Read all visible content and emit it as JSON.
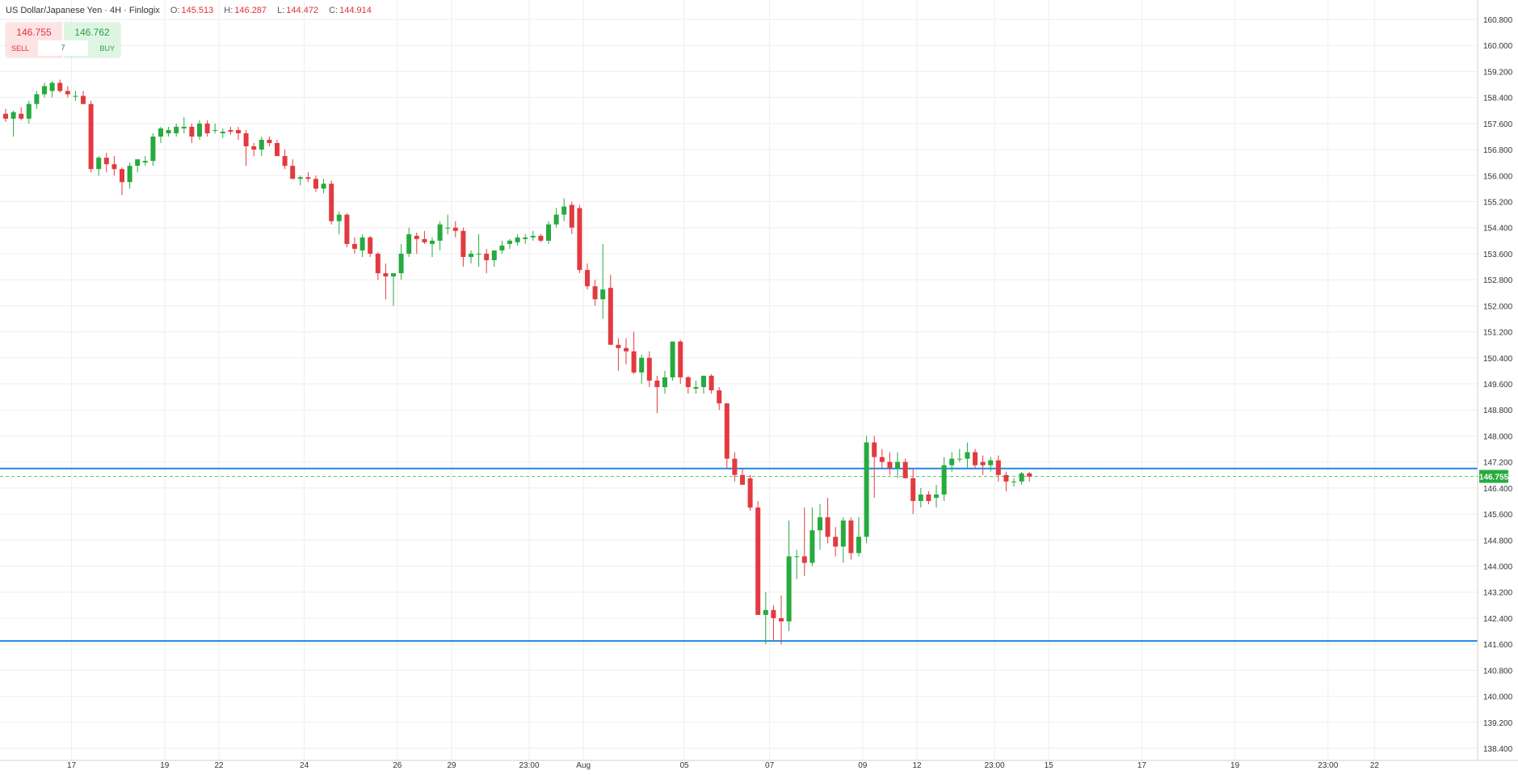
{
  "header": {
    "symbol": "US Dollar/Japanese Yen · 4H · Finlogix",
    "open_label": "O:",
    "open": "145.513",
    "high_label": "H:",
    "high": "146.287",
    "low_label": "L:",
    "low": "144.472",
    "close_label": "C:",
    "close": "144.914"
  },
  "trade": {
    "sell_price": "146.755",
    "buy_price": "146.762",
    "sell_label": "SELL",
    "buy_label": "BUY",
    "quantity": "7"
  },
  "colors": {
    "up": "#26ab3e",
    "down": "#e23a40",
    "level_line": "#1e88e5",
    "grid": "#eeeeee",
    "price_badge": "#26ab3e"
  },
  "chart_data": {
    "type": "candlestick",
    "ylim": [
      138.4,
      160.8
    ],
    "y_ticks": [
      "138.400",
      "139.200",
      "140.000",
      "140.800",
      "141.600",
      "142.400",
      "143.200",
      "144.000",
      "144.800",
      "145.600",
      "146.400",
      "147.200",
      "148.000",
      "148.800",
      "149.600",
      "150.400",
      "151.200",
      "152.000",
      "152.800",
      "153.600",
      "154.400",
      "155.200",
      "156.000",
      "156.800",
      "157.600",
      "158.400",
      "159.200",
      "160.000",
      "160.800"
    ],
    "x_tick_labels": [
      {
        "label": "17",
        "index": 8.5
      },
      {
        "label": "19",
        "index": 20.5
      },
      {
        "label": "22",
        "index": 27.5
      },
      {
        "label": "24",
        "index": 38.5
      },
      {
        "label": "26",
        "index": 50.5
      },
      {
        "label": "29",
        "index": 57.5
      },
      {
        "label": "23:00",
        "index": 67.5
      },
      {
        "label": "Aug",
        "index": 74.5
      },
      {
        "label": "05",
        "index": 87.5
      },
      {
        "label": "07",
        "index": 98.5
      },
      {
        "label": "09",
        "index": 110.5
      },
      {
        "label": "12",
        "index": 117.5
      },
      {
        "label": "23:00",
        "index": 127.5
      },
      {
        "label": "15",
        "index": 134.5
      },
      {
        "label": "17",
        "index": 146.5
      },
      {
        "label": "19",
        "index": 158.5
      },
      {
        "label": "23:00",
        "index": 170.5
      },
      {
        "label": "22",
        "index": 176.5
      }
    ],
    "candles": [
      [
        157.9,
        158.05,
        157.65,
        157.75
      ],
      [
        157.75,
        158.0,
        157.2,
        157.95
      ],
      [
        157.9,
        158.1,
        157.7,
        157.75
      ],
      [
        157.75,
        158.3,
        157.6,
        158.2
      ],
      [
        158.2,
        158.6,
        158.05,
        158.5
      ],
      [
        158.5,
        158.85,
        158.4,
        158.75
      ],
      [
        158.6,
        158.9,
        158.4,
        158.85
      ],
      [
        158.85,
        158.95,
        158.55,
        158.6
      ],
      [
        158.6,
        158.75,
        158.4,
        158.5
      ],
      [
        158.45,
        158.6,
        158.3,
        158.45
      ],
      [
        158.45,
        158.6,
        158.2,
        158.2
      ],
      [
        158.2,
        158.3,
        156.1,
        156.2
      ],
      [
        156.2,
        156.6,
        156.0,
        156.55
      ],
      [
        156.55,
        156.7,
        156.1,
        156.35
      ],
      [
        156.35,
        156.6,
        156.0,
        156.2
      ],
      [
        156.2,
        156.25,
        155.4,
        155.8
      ],
      [
        155.8,
        156.4,
        155.6,
        156.3
      ],
      [
        156.3,
        156.5,
        156.1,
        156.5
      ],
      [
        156.4,
        156.6,
        156.3,
        156.45
      ],
      [
        156.45,
        157.3,
        156.3,
        157.2
      ],
      [
        157.2,
        157.5,
        157.0,
        157.45
      ],
      [
        157.3,
        157.5,
        157.2,
        157.4
      ],
      [
        157.3,
        157.6,
        157.2,
        157.5
      ],
      [
        157.45,
        157.8,
        157.3,
        157.5
      ],
      [
        157.5,
        157.6,
        157.0,
        157.2
      ],
      [
        157.2,
        157.7,
        157.1,
        157.6
      ],
      [
        157.6,
        157.7,
        157.2,
        157.3
      ],
      [
        157.4,
        157.6,
        157.3,
        157.4
      ],
      [
        157.3,
        157.45,
        157.15,
        157.35
      ],
      [
        157.4,
        157.5,
        157.25,
        157.35
      ],
      [
        157.4,
        157.5,
        157.1,
        157.3
      ],
      [
        157.3,
        157.4,
        156.3,
        156.9
      ],
      [
        156.9,
        157.0,
        156.6,
        156.8
      ],
      [
        156.8,
        157.2,
        156.6,
        157.1
      ],
      [
        157.1,
        157.2,
        156.9,
        157.0
      ],
      [
        157.0,
        157.1,
        156.6,
        156.6
      ],
      [
        156.6,
        156.8,
        156.2,
        156.3
      ],
      [
        156.3,
        156.5,
        155.9,
        155.9
      ],
      [
        155.9,
        156.0,
        155.7,
        155.95
      ],
      [
        155.95,
        156.1,
        155.8,
        155.9
      ],
      [
        155.9,
        156.0,
        155.5,
        155.6
      ],
      [
        155.6,
        155.9,
        155.45,
        155.75
      ],
      [
        155.75,
        155.85,
        154.5,
        154.6
      ],
      [
        154.6,
        154.9,
        154.2,
        154.8
      ],
      [
        154.8,
        154.85,
        153.8,
        153.9
      ],
      [
        153.9,
        154.1,
        153.6,
        153.75
      ],
      [
        153.7,
        154.2,
        153.5,
        154.1
      ],
      [
        154.1,
        154.15,
        153.5,
        153.6
      ],
      [
        153.6,
        153.65,
        152.8,
        153.0
      ],
      [
        153.0,
        153.3,
        152.2,
        152.9
      ],
      [
        152.9,
        153.0,
        152.0,
        153.0
      ],
      [
        153.0,
        153.9,
        152.8,
        153.6
      ],
      [
        153.6,
        154.4,
        153.5,
        154.2
      ],
      [
        154.15,
        154.25,
        153.6,
        154.05
      ],
      [
        154.05,
        154.3,
        153.9,
        153.95
      ],
      [
        153.9,
        154.1,
        153.5,
        154.0
      ],
      [
        154.0,
        154.6,
        153.7,
        154.5
      ],
      [
        154.4,
        154.8,
        154.2,
        154.4
      ],
      [
        154.4,
        154.6,
        154.1,
        154.3
      ],
      [
        154.3,
        154.4,
        153.2,
        153.5
      ],
      [
        153.5,
        153.7,
        153.3,
        153.6
      ],
      [
        153.6,
        154.2,
        153.2,
        153.6
      ],
      [
        153.6,
        153.75,
        153.0,
        153.4
      ],
      [
        153.4,
        153.7,
        153.2,
        153.7
      ],
      [
        153.7,
        154.0,
        153.6,
        153.85
      ],
      [
        153.9,
        154.05,
        153.75,
        154.0
      ],
      [
        153.95,
        154.2,
        153.85,
        154.1
      ],
      [
        154.05,
        154.2,
        153.9,
        154.1
      ],
      [
        154.1,
        154.3,
        154.0,
        154.15
      ],
      [
        154.15,
        154.2,
        153.95,
        154.0
      ],
      [
        154.0,
        154.6,
        153.9,
        154.5
      ],
      [
        154.5,
        155.0,
        154.4,
        154.8
      ],
      [
        154.8,
        155.3,
        154.6,
        155.05
      ],
      [
        155.1,
        155.2,
        154.2,
        154.4
      ],
      [
        155.0,
        155.1,
        153.0,
        153.1
      ],
      [
        153.1,
        153.3,
        152.5,
        152.6
      ],
      [
        152.6,
        152.8,
        152.0,
        152.2
      ],
      [
        152.2,
        153.9,
        151.6,
        152.5
      ],
      [
        152.55,
        152.95,
        150.8,
        150.8
      ],
      [
        150.8,
        151.0,
        150.0,
        150.7
      ],
      [
        150.7,
        151.0,
        150.2,
        150.6
      ],
      [
        150.6,
        151.2,
        149.9,
        149.95
      ],
      [
        149.95,
        150.5,
        149.6,
        150.4
      ],
      [
        150.4,
        150.6,
        149.5,
        149.7
      ],
      [
        149.7,
        149.85,
        148.7,
        149.5
      ],
      [
        149.5,
        150.0,
        149.3,
        149.8
      ],
      [
        149.8,
        150.9,
        149.7,
        150.9
      ],
      [
        150.9,
        150.95,
        149.6,
        149.8
      ],
      [
        149.8,
        149.85,
        149.3,
        149.5
      ],
      [
        149.45,
        149.7,
        149.3,
        149.5
      ],
      [
        149.5,
        149.8,
        149.3,
        149.85
      ],
      [
        149.85,
        149.9,
        149.3,
        149.4
      ],
      [
        149.4,
        149.5,
        148.8,
        149.0
      ],
      [
        149.0,
        149.0,
        147.0,
        147.3
      ],
      [
        147.3,
        147.5,
        146.6,
        146.8
      ],
      [
        146.8,
        147.0,
        146.5,
        146.5
      ],
      [
        146.7,
        146.8,
        145.7,
        145.8
      ],
      [
        145.8,
        146.0,
        142.5,
        142.5
      ],
      [
        142.5,
        143.2,
        141.6,
        142.65
      ],
      [
        142.65,
        142.8,
        141.7,
        142.4
      ],
      [
        142.4,
        143.1,
        141.6,
        142.3
      ],
      [
        142.3,
        145.4,
        142.0,
        144.3
      ],
      [
        144.3,
        144.5,
        143.6,
        144.3
      ],
      [
        144.3,
        145.8,
        143.7,
        144.1
      ],
      [
        144.1,
        145.8,
        144.0,
        145.1
      ],
      [
        145.1,
        145.9,
        144.5,
        145.5
      ],
      [
        145.5,
        146.1,
        144.7,
        144.9
      ],
      [
        144.9,
        145.2,
        144.3,
        144.6
      ],
      [
        144.6,
        145.5,
        144.1,
        145.4
      ],
      [
        145.4,
        145.5,
        144.2,
        144.4
      ],
      [
        144.4,
        145.5,
        144.3,
        144.9
      ],
      [
        144.9,
        148.0,
        144.7,
        147.8
      ],
      [
        147.8,
        148.0,
        146.1,
        147.35
      ],
      [
        147.35,
        147.6,
        147.0,
        147.2
      ],
      [
        147.2,
        147.5,
        146.8,
        147.0
      ],
      [
        147.0,
        147.5,
        146.7,
        147.2
      ],
      [
        147.2,
        147.3,
        146.7,
        146.7
      ],
      [
        146.7,
        147.0,
        145.6,
        146.0
      ],
      [
        146.0,
        146.4,
        145.8,
        146.2
      ],
      [
        146.2,
        146.3,
        145.9,
        146.0
      ],
      [
        146.1,
        146.5,
        145.8,
        146.2
      ],
      [
        146.2,
        147.35,
        146.0,
        147.1
      ],
      [
        147.1,
        147.5,
        146.9,
        147.3
      ],
      [
        147.3,
        147.6,
        147.2,
        147.3
      ],
      [
        147.3,
        147.8,
        147.0,
        147.5
      ],
      [
        147.5,
        147.6,
        147.0,
        147.1
      ],
      [
        147.2,
        147.4,
        146.8,
        147.1
      ],
      [
        147.1,
        147.35,
        146.9,
        147.25
      ],
      [
        147.25,
        147.4,
        146.6,
        146.8
      ],
      [
        146.8,
        146.9,
        146.3,
        146.6
      ],
      [
        146.6,
        146.7,
        146.45,
        146.6
      ],
      [
        146.6,
        146.9,
        146.5,
        146.85
      ],
      [
        146.85,
        146.9,
        146.6,
        146.75
      ]
    ],
    "horizontal_lines": [
      147.0,
      141.7
    ],
    "current_price": 146.755,
    "current_price_label": "146.755"
  }
}
